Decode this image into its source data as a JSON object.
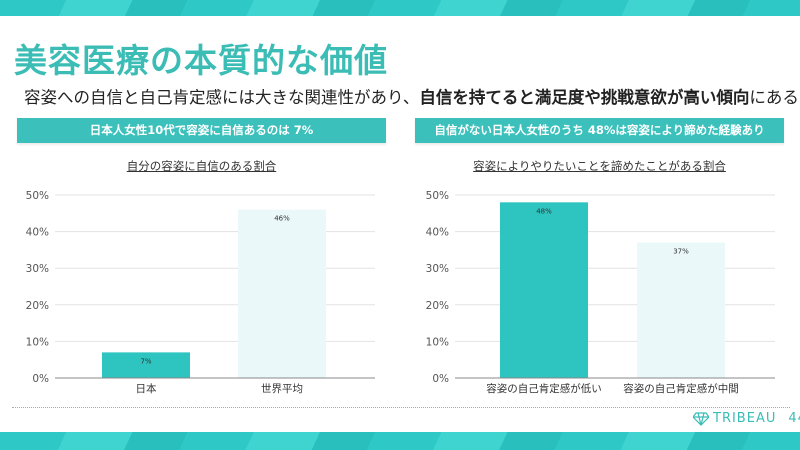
{
  "slide": {
    "title": "美容医療の本質的な価値",
    "subtitle_normal1": "容姿への自信と自己肯定感には大きな関連性があり、",
    "subtitle_bold": "自信を持てると満足度や挑戦意欲が高い傾向",
    "subtitle_normal2": "にある",
    "left_header": "日本人女性10代で容姿に自信あるのは 7%",
    "right_header": "自信がない日本人女性のうち 48%は容姿により諦めた経験あり",
    "brand": "TRIBEAU",
    "page_number": "44"
  },
  "colors": {
    "accent": "#3cc0bc",
    "bar_primary": "#2ec4c0",
    "bar_secondary": "#eaf8fa"
  },
  "chart_data": [
    {
      "type": "bar",
      "title": "自分の容姿に自信のある割合",
      "categories": [
        "日本",
        "世界平均"
      ],
      "values": [
        7,
        46
      ],
      "data_labels": [
        "7%",
        "46%"
      ],
      "ylim": [
        0,
        50
      ],
      "yticks": [
        "0%",
        "10%",
        "20%",
        "30%",
        "40%",
        "50%"
      ],
      "grid": true
    },
    {
      "type": "bar",
      "title": "容姿によりやりたいことを諦めたことがある割合",
      "categories": [
        "容姿の自己肯定感が低い",
        "容姿の自己肯定感が中間"
      ],
      "values": [
        48,
        37
      ],
      "data_labels": [
        "48%",
        "37%"
      ],
      "ylim": [
        0,
        50
      ],
      "yticks": [
        "0%",
        "10%",
        "20%",
        "30%",
        "40%",
        "50%"
      ],
      "grid": true
    }
  ]
}
